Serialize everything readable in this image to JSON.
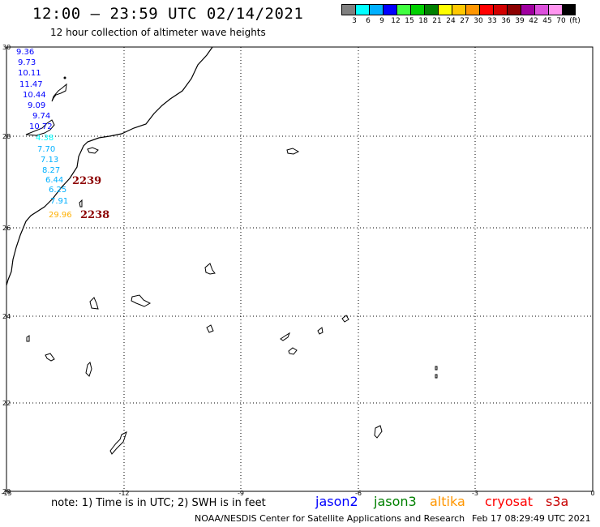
{
  "header": {
    "title": "12:00 — 23:59 UTC 02/14/2021",
    "subtitle": "12 hour collection of altimeter wave heights"
  },
  "colorbar": {
    "colors": [
      "#808080",
      "#00ffff",
      "#00b0ff",
      "#0000ff",
      "#40ff40",
      "#00d000",
      "#008000",
      "#ffff00",
      "#ffc800",
      "#ff9600",
      "#ff0000",
      "#d20000",
      "#8c0000",
      "#a000a0",
      "#dc50dc",
      "#ff96f0",
      "#000000"
    ],
    "labels": [
      "3",
      "6",
      "9",
      "12",
      "15",
      "18",
      "21",
      "24",
      "27",
      "30",
      "33",
      "36",
      "39",
      "42",
      "45",
      "70",
      "(ft)"
    ]
  },
  "map": {
    "lat_labels": [
      "30",
      "28",
      "26",
      "24",
      "22",
      "20"
    ],
    "lon_labels": [
      "-15",
      "-12",
      "-9",
      "-6",
      "-3",
      "0"
    ],
    "wave_heights": [
      {
        "value": "9.36",
        "color": "#0000ff"
      },
      {
        "value": "9.73",
        "color": "#0000ff"
      },
      {
        "value": "10.11",
        "color": "#0000ff"
      },
      {
        "value": "11.47",
        "color": "#0000ff"
      },
      {
        "value": "10.44",
        "color": "#0000ff"
      },
      {
        "value": "9.09",
        "color": "#0000ff"
      },
      {
        "value": "9.74",
        "color": "#0000ff"
      },
      {
        "value": "10.72",
        "color": "#0000ff"
      },
      {
        "value": "4.38",
        "color": "#00ffff"
      },
      {
        "value": "7.70",
        "color": "#00b0ff"
      },
      {
        "value": "7.13",
        "color": "#00b0ff"
      },
      {
        "value": "8.27",
        "color": "#00b0ff"
      },
      {
        "value": "6.44",
        "color": "#00b0ff"
      },
      {
        "value": "6.25",
        "color": "#00b0ff"
      },
      {
        "value": "7.91",
        "color": "#00b0ff"
      },
      {
        "value": "29.96",
        "color": "#ffb000"
      }
    ],
    "track_labels": [
      {
        "value": "2239",
        "color": "#8c0000"
      },
      {
        "value": "2238",
        "color": "#8c0000"
      }
    ]
  },
  "footer": {
    "note": "note: 1) Time is in UTC; 2) SWH is in feet",
    "satellites": [
      {
        "name": "jason2",
        "color": "#0000ff"
      },
      {
        "name": "jason3",
        "color": "#008000"
      },
      {
        "name": "altika",
        "color": "#ff9600"
      },
      {
        "name": "cryosat",
        "color": "#ff0000"
      },
      {
        "name": "s3a",
        "color": "#c80000"
      }
    ],
    "credit": "NOAA/NESDIS Center for Satellite Applications and Research",
    "timestamp": "Feb 17 08:29:49 UTC 2021"
  }
}
